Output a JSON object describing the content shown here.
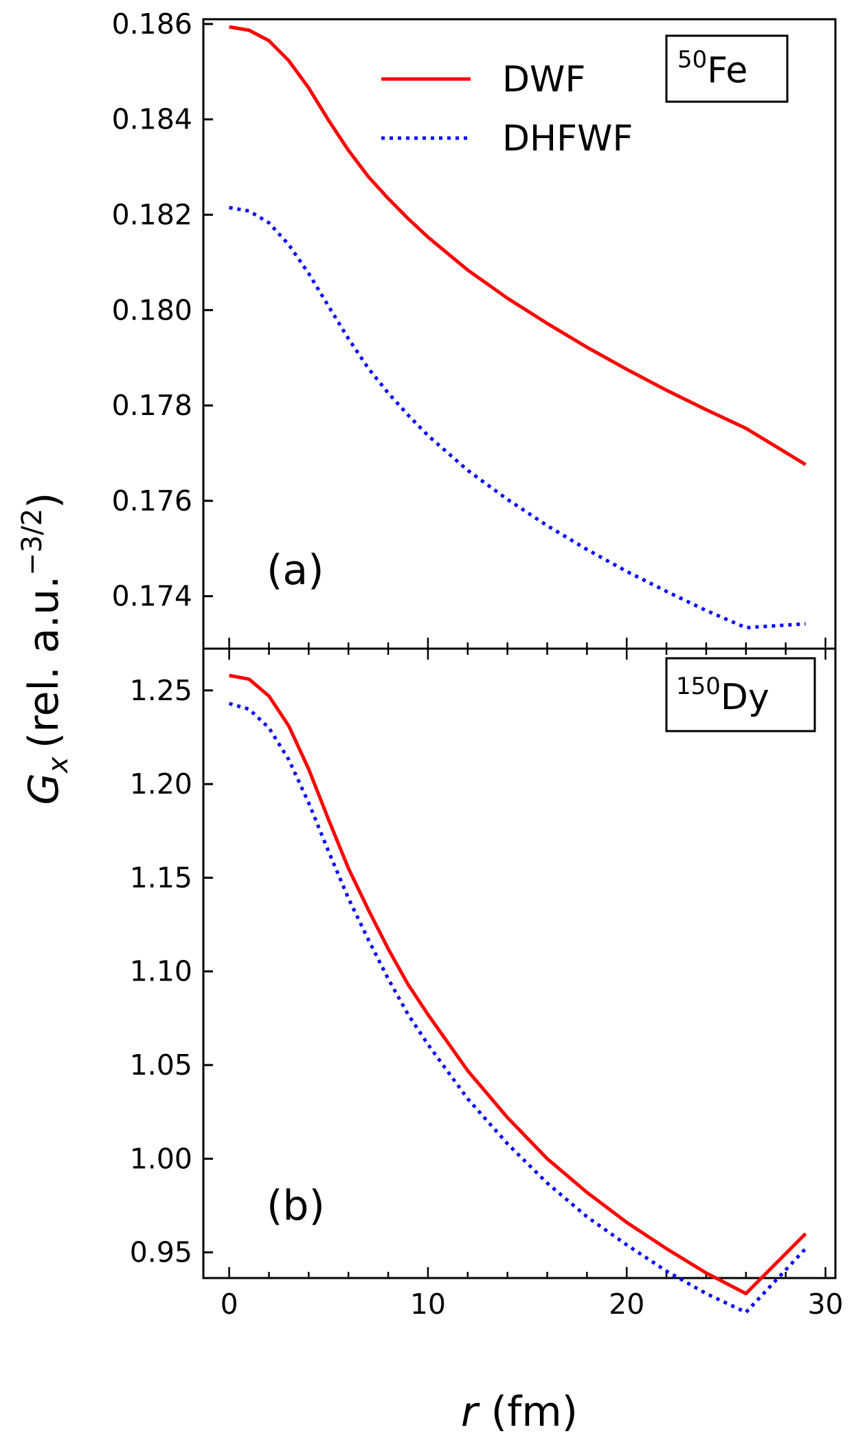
{
  "chart_data": [
    {
      "type": "line",
      "panel_label": "(a)",
      "isotope": {
        "mass": "50",
        "symbol": "Fe"
      },
      "xlim": [
        -1.3,
        30.5
      ],
      "ylim": [
        0.1729,
        0.1861
      ],
      "yticks": [
        "0.174",
        "0.176",
        "0.178",
        "0.180",
        "0.182",
        "0.184",
        "0.186"
      ],
      "ytick_values": [
        0.174,
        0.176,
        0.178,
        0.18,
        0.182,
        0.184,
        0.186
      ],
      "legend": {
        "placement": "top-center"
      },
      "series": [
        {
          "name": "DWF",
          "color": "#ff0000",
          "style": "solid",
          "x": [
            0,
            1,
            2,
            3,
            4,
            5,
            6,
            7,
            8,
            9,
            10,
            12,
            14,
            16,
            18,
            20,
            22,
            24,
            26,
            29
          ],
          "y": [
            0.18594,
            0.18587,
            0.18565,
            0.18523,
            0.18466,
            0.18398,
            0.18335,
            0.1828,
            0.18234,
            0.18192,
            0.18153,
            0.18084,
            0.18025,
            0.17972,
            0.17922,
            0.17876,
            0.17832,
            0.17791,
            0.17752,
            0.17676
          ]
        },
        {
          "name": "DHFWF",
          "color": "#0000ff",
          "style": "dotted",
          "x": [
            0,
            1,
            2,
            3,
            4,
            5,
            6,
            7,
            8,
            9,
            10,
            12,
            14,
            16,
            18,
            20,
            22,
            24,
            26,
            29
          ],
          "y": [
            0.18215,
            0.18208,
            0.18183,
            0.18137,
            0.18077,
            0.18008,
            0.1794,
            0.17878,
            0.17826,
            0.1778,
            0.17737,
            0.17664,
            0.17603,
            0.17548,
            0.17498,
            0.17452,
            0.1741,
            0.1737,
            0.17334,
            0.17342
          ]
        }
      ]
    },
    {
      "type": "line",
      "panel_label": "(b)",
      "isotope": {
        "mass": "150",
        "symbol": "Dy"
      },
      "xlim": [
        -1.3,
        30.5
      ],
      "ylim": [
        0.9363,
        1.2723
      ],
      "xticks": [
        "0",
        "10",
        "20",
        "30"
      ],
      "xtick_values": [
        0,
        10,
        20,
        30
      ],
      "yticks": [
        "0.95",
        "1.00",
        "1.05",
        "1.10",
        "1.15",
        "1.20",
        "1.25"
      ],
      "ytick_values": [
        0.95,
        1.0,
        1.05,
        1.1,
        1.15,
        1.2,
        1.25
      ],
      "series": [
        {
          "name": "DWF",
          "color": "#ff0000",
          "style": "solid",
          "x": [
            0,
            1,
            2,
            3,
            4,
            5,
            6,
            7,
            8,
            9,
            10,
            12,
            14,
            16,
            18,
            20,
            22,
            24,
            26,
            29
          ],
          "y": [
            1.258,
            1.256,
            1.247,
            1.231,
            1.208,
            1.181,
            1.155,
            1.133,
            1.112,
            1.093,
            1.077,
            1.047,
            1.022,
            1.0,
            0.982,
            0.966,
            0.952,
            0.939,
            0.928,
            0.96
          ]
        },
        {
          "name": "DHFWF",
          "color": "#0000ff",
          "style": "dotted",
          "x": [
            0,
            1,
            2,
            3,
            4,
            5,
            6,
            7,
            8,
            9,
            10,
            12,
            14,
            16,
            18,
            20,
            22,
            24,
            26,
            29
          ],
          "y": [
            1.243,
            1.24,
            1.23,
            1.213,
            1.19,
            1.164,
            1.139,
            1.117,
            1.096,
            1.077,
            1.061,
            1.032,
            1.008,
            0.987,
            0.969,
            0.954,
            0.94,
            0.928,
            0.918,
            0.952
          ]
        }
      ]
    }
  ],
  "ylabel": {
    "symbol": "G",
    "subscript": "x",
    "units": "(rel. a.u.",
    "exponent": "−3/2",
    "close": ")"
  },
  "xlabel": {
    "symbol": "r",
    "units": " (fm)"
  }
}
